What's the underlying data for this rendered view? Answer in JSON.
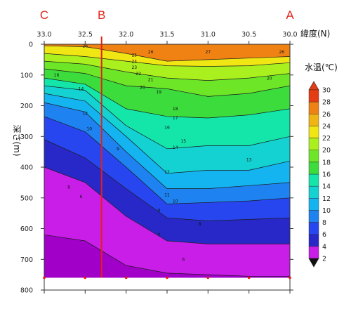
{
  "chart_data": {
    "type": "heatmap",
    "title": "",
    "xlabel": "緯度(N)",
    "ylabel": "深さ(m)",
    "colorbar_title": "水温(℃)",
    "xlim": [
      33.0,
      30.0
    ],
    "ylim": [
      800,
      0
    ],
    "x_ticks": [
      "33.0",
      "32.5",
      "32.0",
      "31.5",
      "31.0",
      "30.5",
      "30.0"
    ],
    "x_tick_values": [
      33.0,
      32.5,
      32.0,
      31.5,
      31.0,
      30.5,
      30.0
    ],
    "y_ticks": [
      "0",
      "100",
      "200",
      "300",
      "400",
      "500",
      "600",
      "700",
      "800"
    ],
    "y_tick_values": [
      0,
      100,
      200,
      300,
      400,
      500,
      600,
      700,
      800
    ],
    "colorbar_ticks": [
      "30",
      "28",
      "26",
      "24",
      "22",
      "20",
      "18",
      "16",
      "14",
      "12",
      "10",
      "8",
      "6",
      "4",
      "2"
    ],
    "colorbar_levels": [
      2,
      4,
      6,
      8,
      10,
      12,
      14,
      16,
      18,
      20,
      22,
      24,
      26,
      28,
      30
    ],
    "colorbar_colors": [
      "#a000c8",
      "#c81ee8",
      "#2828c8",
      "#2846f0",
      "#1e82f0",
      "#14b4f0",
      "#14d2d2",
      "#14e6aa",
      "#3cdc3c",
      "#6ee628",
      "#aaf01e",
      "#f0e614",
      "#f0b414",
      "#f08214",
      "#e63c14"
    ],
    "data_max_depth": 760,
    "section_markers": [
      {
        "label": "C",
        "lat": 33.0
      },
      {
        "label": "B",
        "lat": 32.3
      },
      {
        "label": "A",
        "lat": 30.0
      }
    ],
    "station_latitudes": [
      33.0,
      32.5,
      32.0,
      31.5,
      31.0,
      30.5,
      30.0
    ],
    "isotherms": [
      {
        "temp": 26,
        "depth": [
          5,
          8,
          30,
          55,
          50,
          45,
          40
        ]
      },
      {
        "temp": 24,
        "depth": [
          30,
          40,
          55,
          70,
          72,
          70,
          60
        ]
      },
      {
        "temp": 22,
        "depth": [
          55,
          65,
          90,
          110,
          118,
          110,
          95
        ]
      },
      {
        "temp": 20,
        "depth": [
          80,
          95,
          135,
          145,
          170,
          160,
          135
        ]
      },
      {
        "temp": 18,
        "depth": [
          110,
          130,
          210,
          235,
          240,
          230,
          210
        ]
      },
      {
        "temp": 16,
        "depth": [
          135,
          150,
          265,
          340,
          330,
          330,
          300
        ]
      },
      {
        "temp": 14,
        "depth": [
          160,
          185,
          300,
          420,
          410,
          410,
          380
        ]
      },
      {
        "temp": 12,
        "depth": [
          190,
          220,
          350,
          470,
          470,
          460,
          450
        ]
      },
      {
        "temp": 10,
        "depth": [
          235,
          285,
          400,
          520,
          515,
          510,
          500
        ]
      },
      {
        "temp": 8,
        "depth": [
          310,
          370,
          470,
          565,
          575,
          570,
          565
        ]
      },
      {
        "temp": 6,
        "depth": [
          400,
          450,
          560,
          640,
          650,
          650,
          650
        ]
      },
      {
        "temp": 4,
        "depth": [
          620,
          640,
          720,
          745,
          750,
          755,
          755
        ]
      }
    ],
    "contour_labels": [
      {
        "text": "27",
        "lat": 31.0,
        "depth": 30
      },
      {
        "text": "26",
        "lat": 32.5,
        "depth": 10
      },
      {
        "text": "26",
        "lat": 31.7,
        "depth": 30
      },
      {
        "text": "26",
        "lat": 30.1,
        "depth": 30
      },
      {
        "text": "25",
        "lat": 31.9,
        "depth": 40
      },
      {
        "text": "24",
        "lat": 31.9,
        "depth": 60
      },
      {
        "text": "23",
        "lat": 31.9,
        "depth": 80
      },
      {
        "text": "22",
        "lat": 31.85,
        "depth": 100
      },
      {
        "text": "21",
        "lat": 31.7,
        "depth": 120
      },
      {
        "text": "20",
        "lat": 31.8,
        "depth": 145
      },
      {
        "text": "20",
        "lat": 30.25,
        "depth": 115
      },
      {
        "text": "19",
        "lat": 31.6,
        "depth": 160
      },
      {
        "text": "18",
        "lat": 31.4,
        "depth": 215
      },
      {
        "text": "17",
        "lat": 31.4,
        "depth": 245
      },
      {
        "text": "16",
        "lat": 31.5,
        "depth": 275
      },
      {
        "text": "15",
        "lat": 31.3,
        "depth": 320
      },
      {
        "text": "14",
        "lat": 31.4,
        "depth": 340
      },
      {
        "text": "13",
        "lat": 30.5,
        "depth": 380
      },
      {
        "text": "12",
        "lat": 31.5,
        "depth": 420
      },
      {
        "text": "11",
        "lat": 31.5,
        "depth": 495
      },
      {
        "text": "10",
        "lat": 31.4,
        "depth": 515
      },
      {
        "text": "9",
        "lat": 31.6,
        "depth": 545
      },
      {
        "text": "8",
        "lat": 31.1,
        "depth": 590
      },
      {
        "text": "7",
        "lat": 31.6,
        "depth": 625
      },
      {
        "text": "6",
        "lat": 31.3,
        "depth": 705
      },
      {
        "text": "16",
        "lat": 32.85,
        "depth": 105
      },
      {
        "text": "14",
        "lat": 32.55,
        "depth": 150
      },
      {
        "text": "12",
        "lat": 32.5,
        "depth": 230
      },
      {
        "text": "10",
        "lat": 32.45,
        "depth": 280
      },
      {
        "text": "9",
        "lat": 32.1,
        "depth": 345
      },
      {
        "text": "8",
        "lat": 32.7,
        "depth": 470
      },
      {
        "text": "6",
        "lat": 32.55,
        "depth": 500
      }
    ]
  }
}
